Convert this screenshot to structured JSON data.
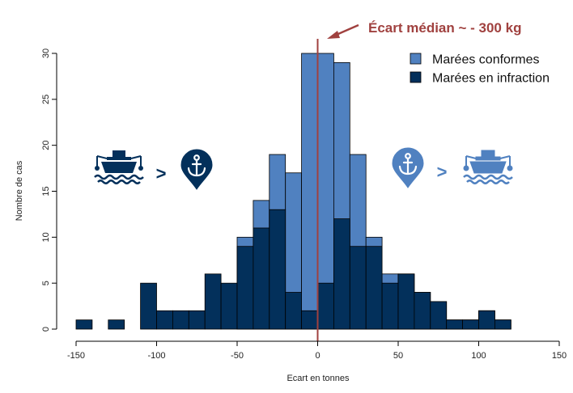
{
  "chart_data": {
    "type": "bar",
    "stacked": false,
    "bin_width": 10,
    "bin_starts": [
      -150,
      -140,
      -130,
      -120,
      -110,
      -100,
      -90,
      -80,
      -70,
      -60,
      -50,
      -40,
      -30,
      -20,
      -10,
      0,
      10,
      20,
      30,
      40,
      50,
      60,
      70,
      80,
      90,
      100,
      110
    ],
    "series": [
      {
        "name": "Marées conformes",
        "color": "#5081C0",
        "values": [
          0,
          0,
          0,
          0,
          0,
          0,
          0,
          0,
          0,
          0,
          10,
          14,
          19,
          17,
          30,
          30,
          29,
          19,
          10,
          6,
          6,
          4,
          3,
          1,
          1,
          2,
          1
        ]
      },
      {
        "name": "Marées en infraction",
        "color": "#03305B",
        "values": [
          1,
          0,
          1,
          0,
          5,
          2,
          2,
          2,
          6,
          5,
          9,
          11,
          13,
          4,
          2,
          5,
          12,
          9,
          9,
          5,
          6,
          4,
          3,
          1,
          1,
          2,
          1
        ]
      }
    ],
    "xlabel": "Ecart en tonnes",
    "ylabel": "Nombre de cas",
    "xlim": [
      -150,
      150
    ],
    "ylim": [
      0,
      30
    ],
    "x_ticks": [
      -150,
      -100,
      -50,
      0,
      50,
      100,
      150
    ],
    "y_ticks": [
      0,
      5,
      10,
      15,
      20,
      25,
      30
    ],
    "median_line": {
      "x": 0,
      "color": "#A0413F"
    },
    "annotation": {
      "text": "Écart médian ~ - 300 kg",
      "color": "#A0413F"
    },
    "legend": {
      "placement": "top-right",
      "entries": [
        {
          "label": "Marées conformes",
          "color": "#5081C0"
        },
        {
          "label": "Marées en infraction",
          "color": "#03305B"
        }
      ]
    },
    "icons_left": {
      "first": "boat-icon",
      "symbol": ">",
      "second": "anchor-pin-icon",
      "color": "#03305B"
    },
    "icons_right": {
      "first": "anchor-pin-icon",
      "symbol": ">",
      "second": "boat-icon",
      "color": "#5081C0"
    },
    "grid": false
  }
}
